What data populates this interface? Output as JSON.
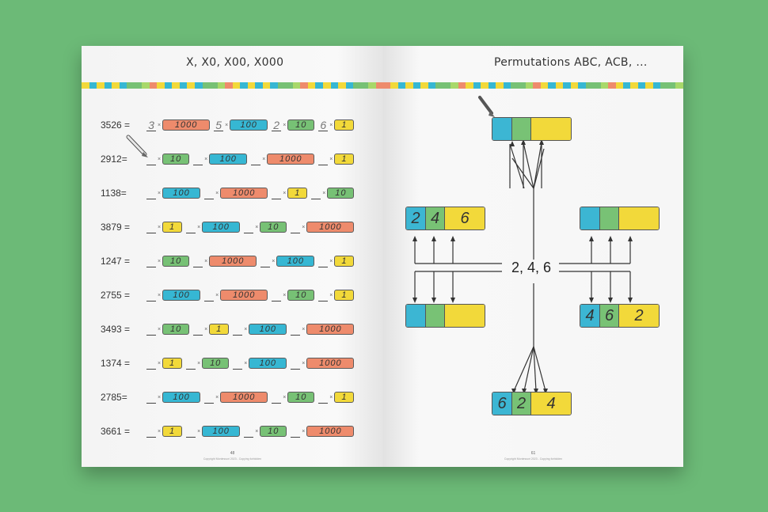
{
  "left_page": {
    "title": "X, X0, X00, X000",
    "page_number": "48",
    "copyright": "Copyright Montessori 2023 - Copying forbidden",
    "rows": [
      {
        "number": "3526 =",
        "cells": [
          {
            "digit": "3",
            "label": "1000",
            "kind": "b1000"
          },
          {
            "digit": "5",
            "label": "100",
            "kind": "b100"
          },
          {
            "digit": "2",
            "label": "10",
            "kind": "b10"
          },
          {
            "digit": "6",
            "label": "1",
            "kind": "b1"
          }
        ]
      },
      {
        "number": "2912=",
        "cells": [
          {
            "digit": "",
            "label": "10",
            "kind": "b10"
          },
          {
            "digit": "",
            "label": "100",
            "kind": "b100"
          },
          {
            "digit": "",
            "label": "1000",
            "kind": "b1000"
          },
          {
            "digit": "",
            "label": "1",
            "kind": "b1"
          }
        ]
      },
      {
        "number": "1138=",
        "cells": [
          {
            "digit": "",
            "label": "100",
            "kind": "b100"
          },
          {
            "digit": "",
            "label": "1000",
            "kind": "b1000"
          },
          {
            "digit": "",
            "label": "1",
            "kind": "b1"
          },
          {
            "digit": "",
            "label": "10",
            "kind": "b10"
          }
        ]
      },
      {
        "number": "3879 =",
        "cells": [
          {
            "digit": "",
            "label": "1",
            "kind": "b1"
          },
          {
            "digit": "",
            "label": "100",
            "kind": "b100"
          },
          {
            "digit": "",
            "label": "10",
            "kind": "b10"
          },
          {
            "digit": "",
            "label": "1000",
            "kind": "b1000"
          }
        ]
      },
      {
        "number": "1247 =",
        "cells": [
          {
            "digit": "",
            "label": "10",
            "kind": "b10"
          },
          {
            "digit": "",
            "label": "1000",
            "kind": "b1000"
          },
          {
            "digit": "",
            "label": "100",
            "kind": "b100"
          },
          {
            "digit": "",
            "label": "1",
            "kind": "b1"
          }
        ]
      },
      {
        "number": "2755 =",
        "cells": [
          {
            "digit": "",
            "label": "100",
            "kind": "b100"
          },
          {
            "digit": "",
            "label": "1000",
            "kind": "b1000"
          },
          {
            "digit": "",
            "label": "10",
            "kind": "b10"
          },
          {
            "digit": "",
            "label": "1",
            "kind": "b1"
          }
        ]
      },
      {
        "number": "3493 =",
        "cells": [
          {
            "digit": "",
            "label": "10",
            "kind": "b10"
          },
          {
            "digit": "",
            "label": "1",
            "kind": "b1"
          },
          {
            "digit": "",
            "label": "100",
            "kind": "b100"
          },
          {
            "digit": "",
            "label": "1000",
            "kind": "b1000"
          }
        ]
      },
      {
        "number": "1374 =",
        "cells": [
          {
            "digit": "",
            "label": "1",
            "kind": "b1"
          },
          {
            "digit": "",
            "label": "10",
            "kind": "b10"
          },
          {
            "digit": "",
            "label": "100",
            "kind": "b100"
          },
          {
            "digit": "",
            "label": "1000",
            "kind": "b1000"
          }
        ]
      },
      {
        "number": "2785=",
        "cells": [
          {
            "digit": "",
            "label": "100",
            "kind": "b100"
          },
          {
            "digit": "",
            "label": "1000",
            "kind": "b1000"
          },
          {
            "digit": "",
            "label": "10",
            "kind": "b10"
          },
          {
            "digit": "",
            "label": "1",
            "kind": "b1"
          }
        ]
      },
      {
        "number": "3661 =",
        "cells": [
          {
            "digit": "",
            "label": "1",
            "kind": "b1"
          },
          {
            "digit": "",
            "label": "100",
            "kind": "b100"
          },
          {
            "digit": "",
            "label": "10",
            "kind": "b10"
          },
          {
            "digit": "",
            "label": "1000",
            "kind": "b1000"
          }
        ]
      }
    ]
  },
  "right_page": {
    "title": "Permutations     ABC, ACB, ...",
    "page_number": "61",
    "copyright": "Copyright Montessori 2023 - Copying forbidden",
    "center_digits": "2, 4, 6",
    "permutations": [
      {
        "digits": [
          "",
          "",
          ""
        ]
      },
      {
        "digits": [
          "2",
          "4",
          "6"
        ]
      },
      {
        "digits": [
          "",
          "",
          ""
        ]
      },
      {
        "digits": [
          "",
          "",
          ""
        ]
      },
      {
        "digits": [
          "4",
          "6",
          "2"
        ]
      },
      {
        "digits": [
          "6",
          "2",
          "4"
        ]
      }
    ]
  },
  "colors": {
    "background": "#6cba77",
    "blue": "#36b7d3",
    "green": "#77c175",
    "yellow": "#f2d93a",
    "orange": "#ee8b6c"
  }
}
